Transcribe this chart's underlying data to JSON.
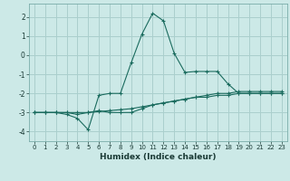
{
  "xlabel": "Humidex (Indice chaleur)",
  "background_color": "#cce9e7",
  "grid_color": "#aacfcd",
  "line_color": "#1a6b5e",
  "x_values": [
    0,
    1,
    2,
    3,
    4,
    5,
    6,
    7,
    8,
    9,
    10,
    11,
    12,
    13,
    14,
    15,
    16,
    17,
    18,
    19,
    20,
    21,
    22,
    23
  ],
  "series1": [
    -3.0,
    -3.0,
    -3.0,
    -3.1,
    -3.3,
    -3.9,
    -2.1,
    -2.0,
    -2.0,
    -0.4,
    1.1,
    2.2,
    1.8,
    0.1,
    -0.9,
    -0.85,
    -0.85,
    -0.85,
    -1.5,
    -2.0,
    -2.0,
    -2.0,
    -2.0,
    -2.0
  ],
  "series2": [
    -3.0,
    -3.0,
    -3.0,
    -3.0,
    -3.1,
    -3.0,
    -2.9,
    -3.0,
    -3.0,
    -3.0,
    -2.8,
    -2.6,
    -2.5,
    -2.4,
    -2.3,
    -2.2,
    -2.1,
    -2.0,
    -2.0,
    -1.9,
    -1.9,
    -1.9,
    -1.9,
    -1.9
  ],
  "series3": [
    -3.0,
    -3.0,
    -3.0,
    -3.0,
    -3.0,
    -3.0,
    -2.95,
    -2.9,
    -2.85,
    -2.8,
    -2.7,
    -2.6,
    -2.5,
    -2.4,
    -2.3,
    -2.2,
    -2.2,
    -2.1,
    -2.1,
    -2.0,
    -2.0,
    -2.0,
    -2.0,
    -2.0
  ],
  "ylim": [
    -4.5,
    2.7
  ],
  "xlim": [
    -0.5,
    23.5
  ],
  "yticks": [
    -4,
    -3,
    -2,
    -1,
    0,
    1,
    2
  ],
  "xticks": [
    0,
    1,
    2,
    3,
    4,
    5,
    6,
    7,
    8,
    9,
    10,
    11,
    12,
    13,
    14,
    15,
    16,
    17,
    18,
    19,
    20,
    21,
    22,
    23
  ],
  "tick_fontsize": 5.0,
  "xlabel_fontsize": 6.5,
  "ytick_fontsize": 5.5
}
